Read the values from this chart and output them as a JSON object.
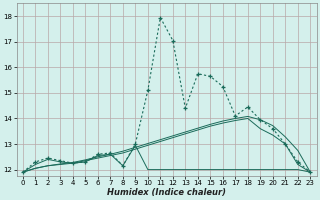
{
  "xlabel": "Humidex (Indice chaleur)",
  "xlim": [
    -0.5,
    23.5
  ],
  "ylim": [
    11.75,
    18.5
  ],
  "yticks": [
    12,
    13,
    14,
    15,
    16,
    17,
    18
  ],
  "xticks": [
    0,
    1,
    2,
    3,
    4,
    5,
    6,
    7,
    8,
    9,
    10,
    11,
    12,
    13,
    14,
    15,
    16,
    17,
    18,
    19,
    20,
    21,
    22,
    23
  ],
  "bg_color": "#d4f0ec",
  "grid_color": "#b8a8a8",
  "line_color": "#1a6b5a",
  "curve_main_x": [
    0,
    1,
    2,
    3,
    4,
    5,
    6,
    7,
    8,
    9,
    10,
    11,
    12,
    13,
    14,
    15,
    16,
    17,
    18,
    19,
    20,
    21,
    22,
    23
  ],
  "curve_main_y": [
    11.9,
    12.3,
    12.45,
    12.35,
    12.25,
    12.3,
    12.6,
    12.65,
    12.15,
    13.0,
    15.1,
    17.95,
    17.05,
    14.4,
    15.75,
    15.65,
    15.25,
    14.1,
    14.45,
    13.95,
    13.6,
    13.0,
    12.3,
    11.9
  ],
  "curve_flat_x": [
    0,
    1,
    2,
    3,
    4,
    5,
    6,
    7,
    8,
    9,
    10,
    11,
    12,
    13,
    14,
    15,
    16,
    17,
    18,
    19,
    20,
    21,
    22,
    23
  ],
  "curve_flat_y": [
    11.9,
    12.2,
    12.4,
    12.3,
    12.25,
    12.3,
    12.55,
    12.6,
    12.15,
    12.95,
    12.0,
    12.0,
    12.0,
    12.0,
    12.0,
    12.0,
    12.0,
    12.0,
    12.0,
    12.0,
    12.0,
    12.0,
    12.0,
    11.9
  ],
  "curve_diag1_x": [
    0,
    1,
    2,
    3,
    4,
    5,
    6,
    7,
    8,
    9,
    10,
    11,
    12,
    13,
    14,
    15,
    16,
    17,
    18,
    19,
    20,
    21,
    22,
    23
  ],
  "curve_diag1_y": [
    11.9,
    12.05,
    12.15,
    12.2,
    12.25,
    12.35,
    12.45,
    12.55,
    12.65,
    12.8,
    12.95,
    13.1,
    13.25,
    13.4,
    13.55,
    13.7,
    13.82,
    13.92,
    14.0,
    13.6,
    13.35,
    13.0,
    12.2,
    11.9
  ],
  "curve_diag2_x": [
    0,
    1,
    2,
    3,
    4,
    5,
    6,
    7,
    8,
    9,
    10,
    11,
    12,
    13,
    14,
    15,
    16,
    17,
    18,
    19,
    20,
    21,
    22,
    23
  ],
  "curve_diag2_y": [
    11.9,
    12.05,
    12.15,
    12.22,
    12.28,
    12.38,
    12.5,
    12.6,
    12.72,
    12.87,
    13.02,
    13.17,
    13.32,
    13.47,
    13.62,
    13.77,
    13.9,
    14.0,
    14.08,
    13.95,
    13.72,
    13.28,
    12.75,
    11.9
  ]
}
